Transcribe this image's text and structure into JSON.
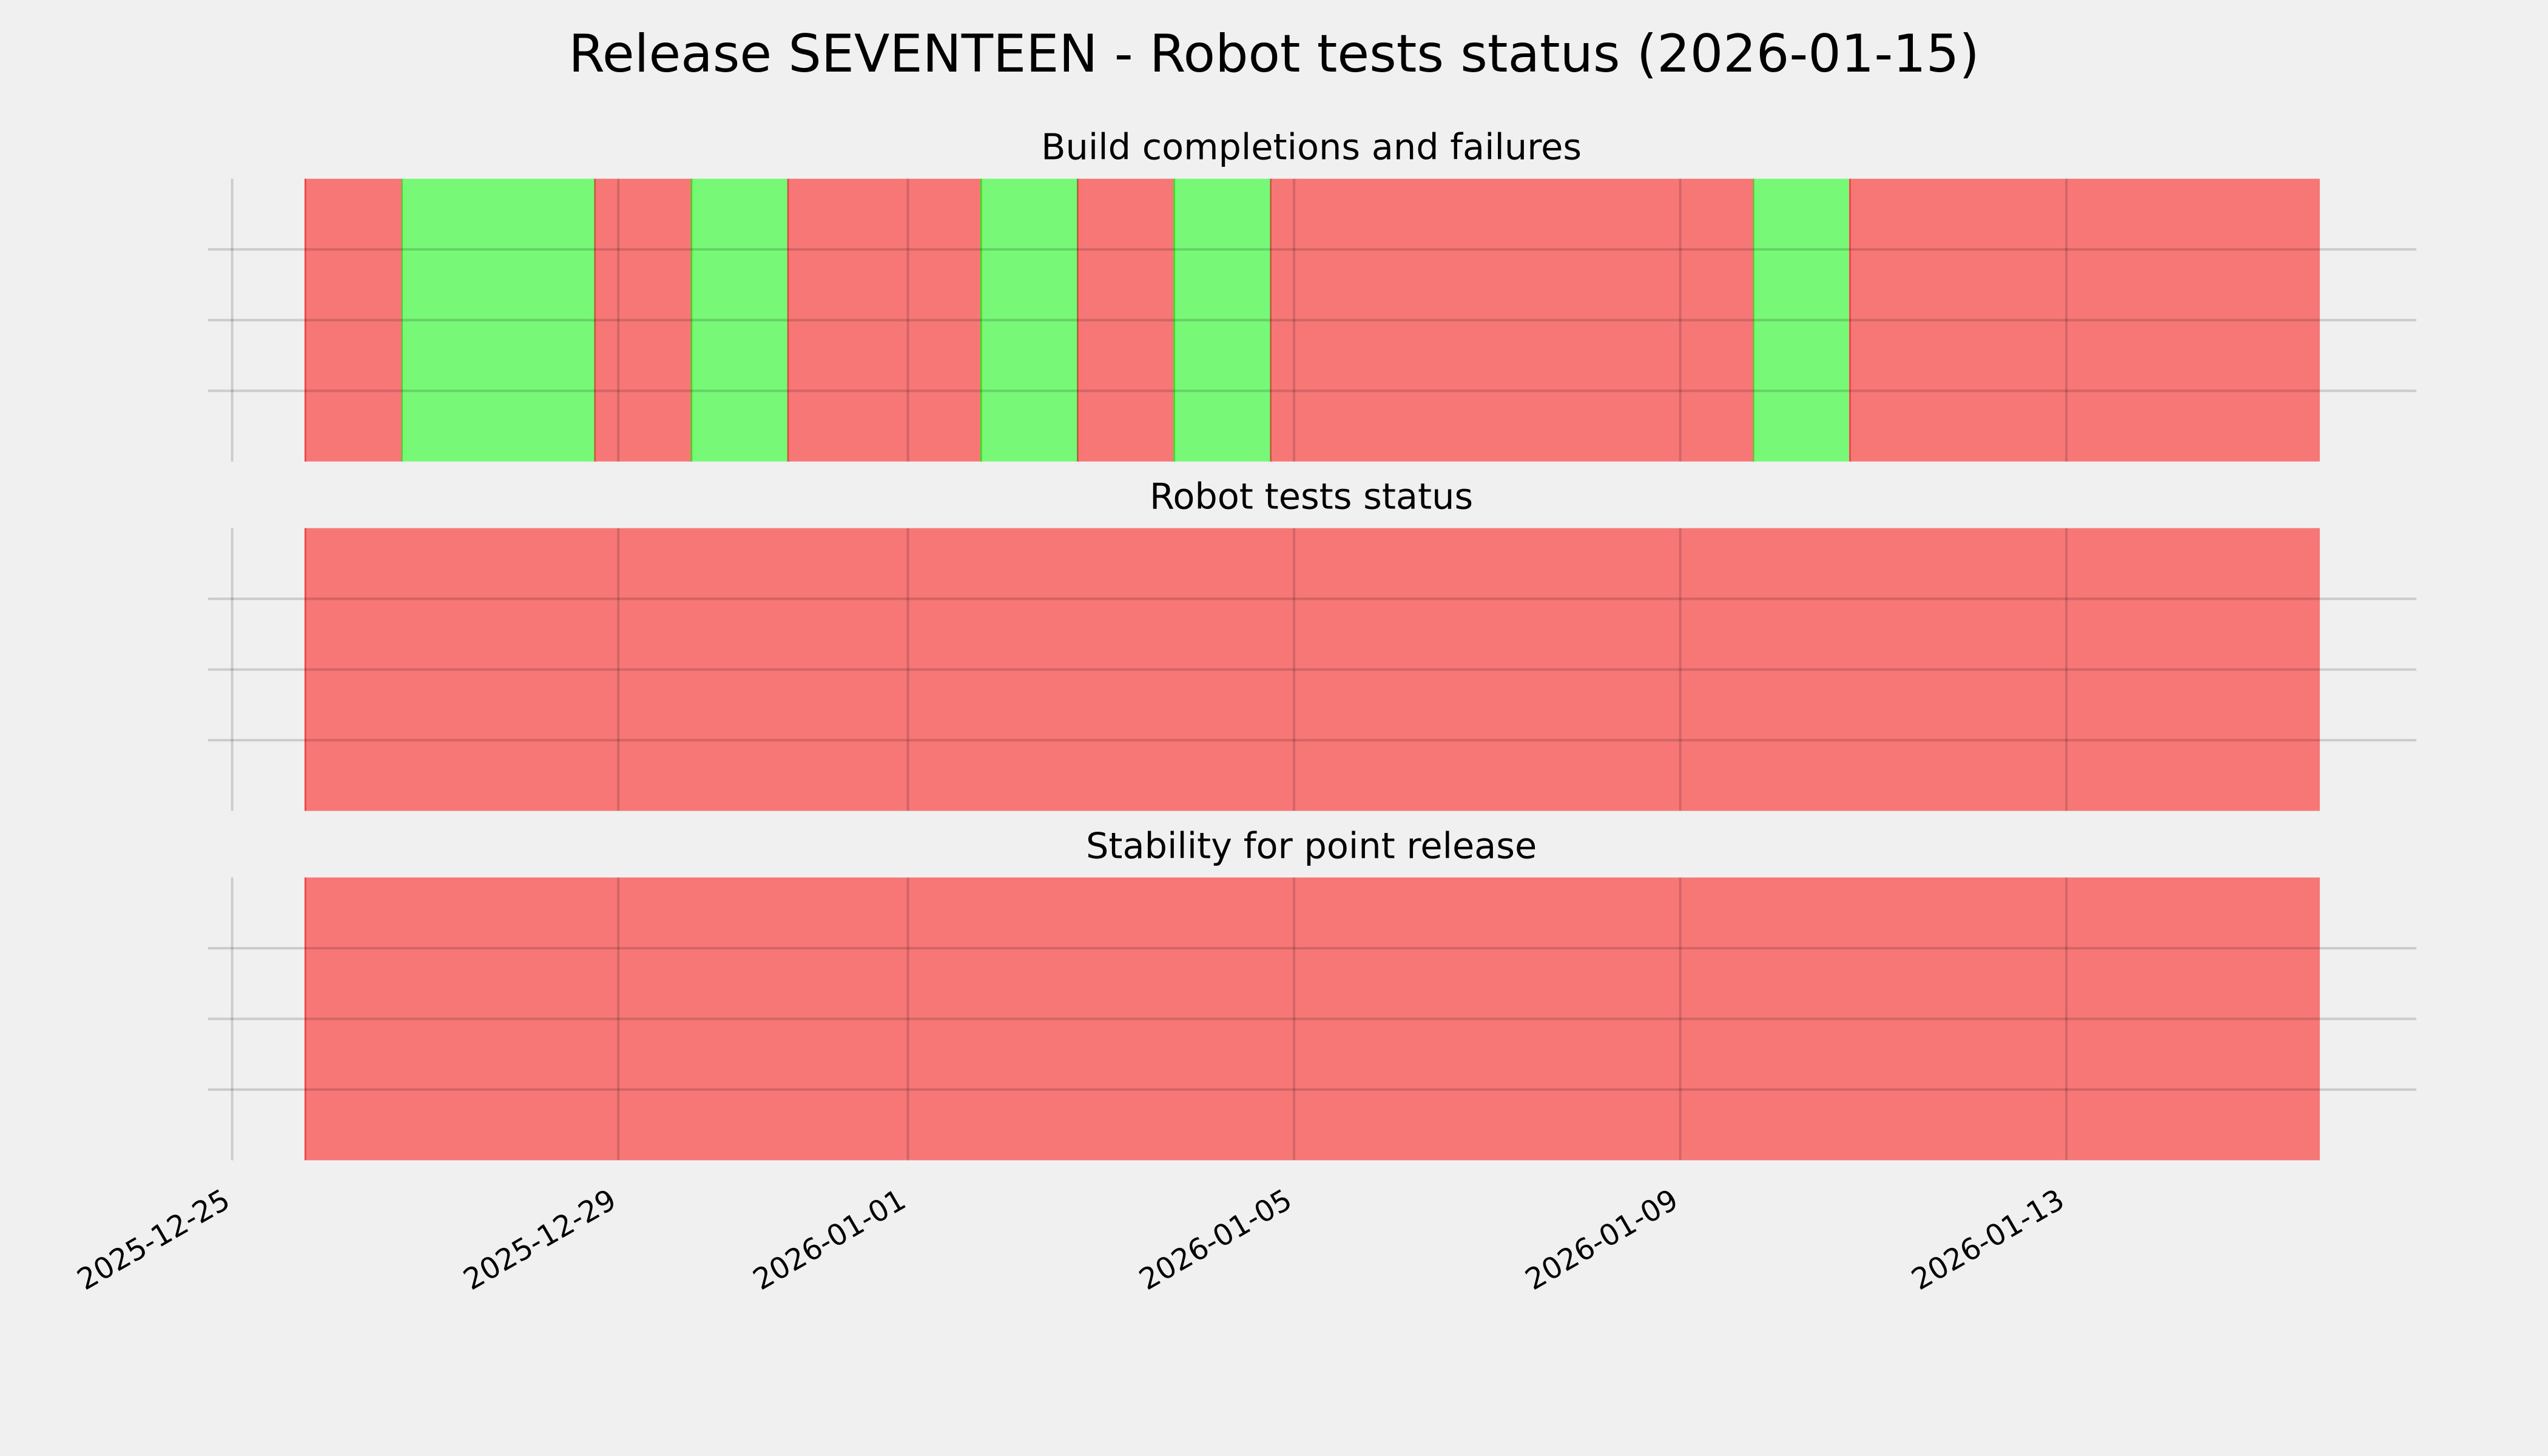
{
  "chart_data": {
    "type": "timeline",
    "title": "Release SEVENTEEN - Robot tests status (2026-01-15)",
    "xlim": [
      "2025-12-24T18:00",
      "2026-01-16T15:00"
    ],
    "ylim": [
      0,
      4
    ],
    "y_ticks": [
      1,
      2,
      3
    ],
    "y_tick_labels_shown": false,
    "x_ticks": [
      "2025-12-25",
      "2025-12-29",
      "2026-01-01",
      "2026-01-05",
      "2026-01-09",
      "2026-01-13"
    ],
    "grid": true,
    "colors": {
      "background": "#f0f0f0",
      "fail": "#f77777",
      "pass": "#77f877",
      "grid": "#cbcbcb"
    },
    "panels": [
      {
        "title": "Build completions and failures",
        "segments": [
          {
            "start": "2025-12-25T18:00",
            "end": "2025-12-26T18:00",
            "status": "fail"
          },
          {
            "start": "2025-12-26T18:00",
            "end": "2025-12-28T18:00",
            "status": "pass"
          },
          {
            "start": "2025-12-28T18:00",
            "end": "2025-12-29T18:00",
            "status": "fail"
          },
          {
            "start": "2025-12-29T18:00",
            "end": "2025-12-30T18:00",
            "status": "pass"
          },
          {
            "start": "2025-12-30T18:00",
            "end": "2026-01-01T18:00",
            "status": "fail"
          },
          {
            "start": "2026-01-01T18:00",
            "end": "2026-01-02T18:00",
            "status": "pass"
          },
          {
            "start": "2026-01-02T18:00",
            "end": "2026-01-03T18:00",
            "status": "fail"
          },
          {
            "start": "2026-01-03T18:00",
            "end": "2026-01-04T18:00",
            "status": "pass"
          },
          {
            "start": "2026-01-04T18:00",
            "end": "2026-01-09T18:00",
            "status": "fail"
          },
          {
            "start": "2026-01-09T18:00",
            "end": "2026-01-10T18:00",
            "status": "pass"
          },
          {
            "start": "2026-01-10T18:00",
            "end": "2026-01-15T15:00",
            "status": "fail"
          }
        ]
      },
      {
        "title": "Robot tests status",
        "segments": [
          {
            "start": "2025-12-25T18:00",
            "end": "2026-01-15T15:00",
            "status": "fail"
          }
        ]
      },
      {
        "title": "Stability for point release",
        "segments": [
          {
            "start": "2025-12-25T18:00",
            "end": "2026-01-15T15:00",
            "status": "fail"
          }
        ]
      }
    ]
  }
}
